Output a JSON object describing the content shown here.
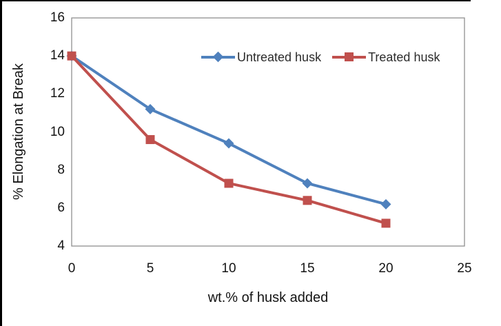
{
  "figure": {
    "doc_border_color": "#000000",
    "background": "#ffffff"
  },
  "chart_data": {
    "type": "line",
    "title": "",
    "xlabel": "wt.% of husk added",
    "ylabel": "% Elongation at Break",
    "x": [
      0,
      5,
      10,
      15,
      20
    ],
    "series": [
      {
        "name": "Untreated husk",
        "values": [
          14,
          11.2,
          9.4,
          7.3,
          6.2
        ],
        "color": "#4F81BD",
        "marker": "diamond"
      },
      {
        "name": "Treated husk",
        "values": [
          14,
          9.6,
          7.3,
          6.4,
          5.2
        ],
        "color": "#C0504D",
        "marker": "square"
      }
    ],
    "xlim": [
      0,
      25
    ],
    "ylim": [
      4,
      16
    ],
    "x_ticks": [
      0,
      5,
      10,
      15,
      20,
      25
    ],
    "y_ticks": [
      4,
      6,
      8,
      10,
      12,
      14,
      16
    ],
    "grid": false,
    "legend_position": "inside-top-center",
    "plot_border_color": "#8E8E8E",
    "line_width": 4
  }
}
